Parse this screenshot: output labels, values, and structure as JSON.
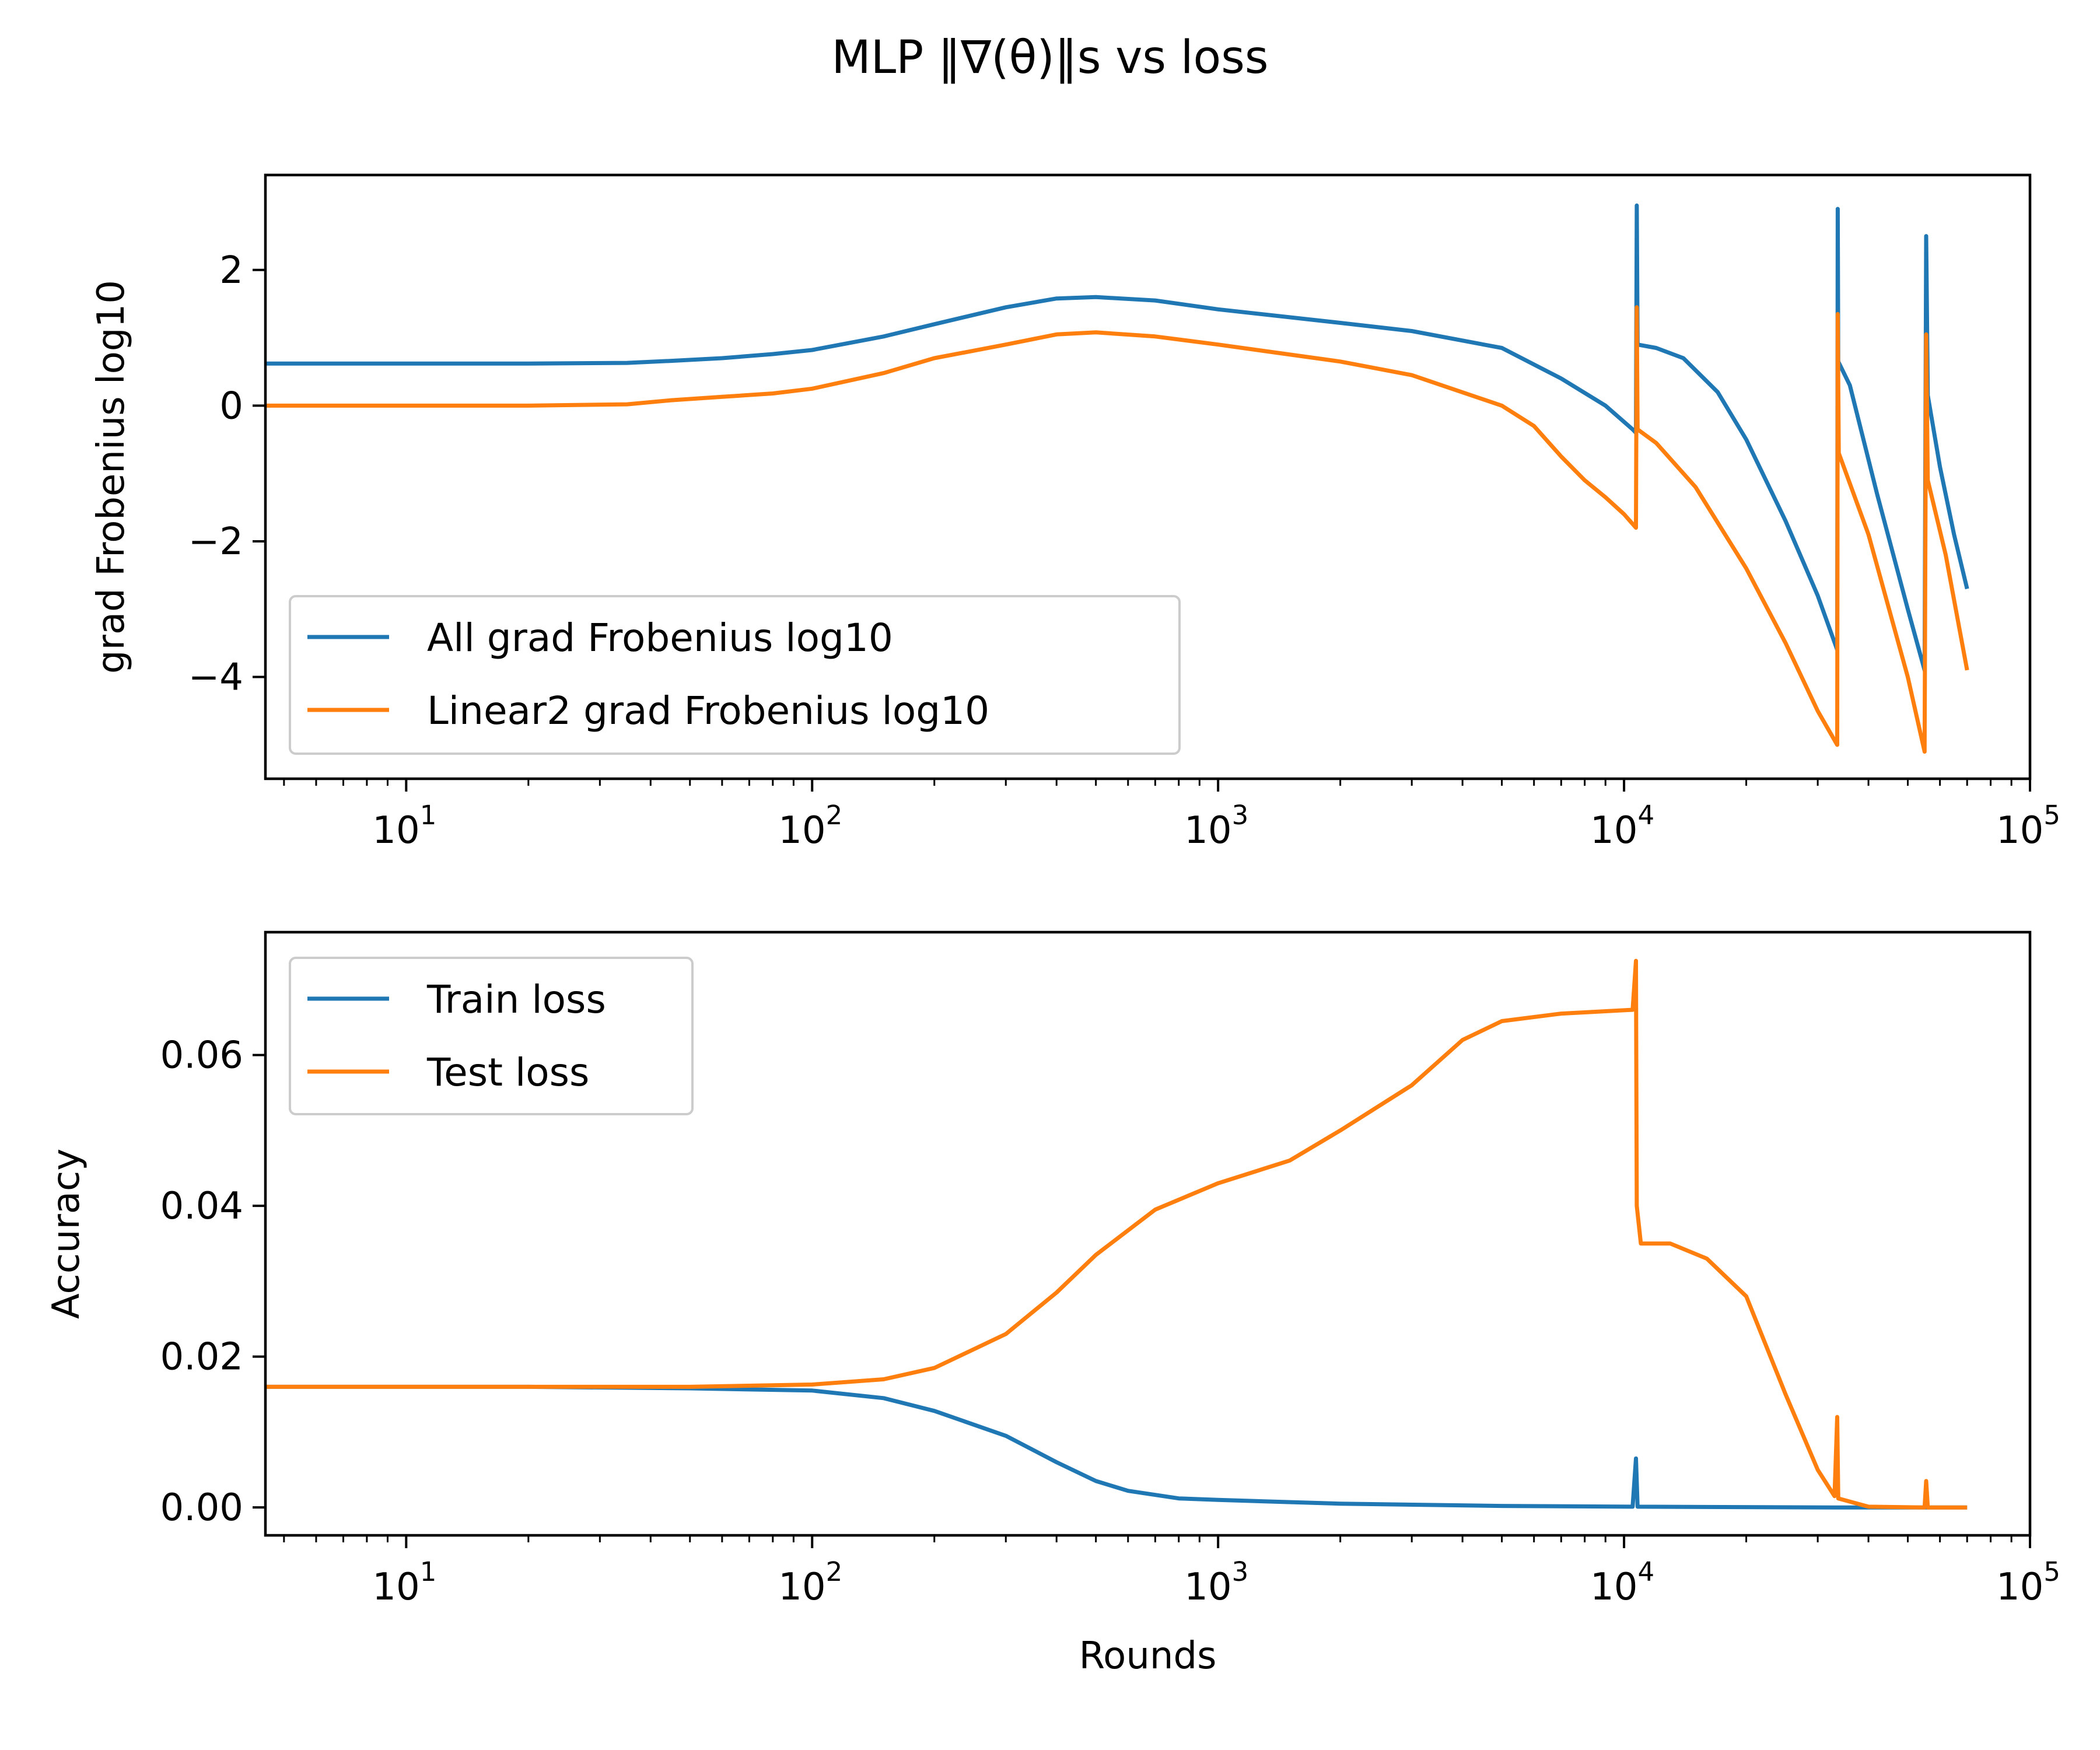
{
  "figure_title": "MLP ‖∇(θ)‖s vs loss",
  "colors": {
    "blue": "#1f77b4",
    "orange": "#ff7f0e"
  },
  "chart_data": [
    {
      "type": "line",
      "title": "",
      "xlabel": "",
      "ylabel": "grad Frobenius log10",
      "x_scale": "log",
      "xlim": [
        4.5,
        100000
      ],
      "ylim": [
        -5.5,
        3.4
      ],
      "x_ticks": [
        {
          "base": "10",
          "exp": "1"
        },
        {
          "base": "10",
          "exp": "2"
        },
        {
          "base": "10",
          "exp": "3"
        },
        {
          "base": "10",
          "exp": "4"
        },
        {
          "base": "10",
          "exp": "5"
        }
      ],
      "y_ticks": [
        "−4",
        "−2",
        "0",
        "2"
      ],
      "y_tick_values": [
        -4,
        -2,
        0,
        2
      ],
      "legend_position": "lower-left",
      "grid": false,
      "series": [
        {
          "name": "All grad Frobenius log10",
          "color": "#1f77b4",
          "points": [
            [
              4.5,
              0.62
            ],
            [
              10,
              0.62
            ],
            [
              20,
              0.62
            ],
            [
              35,
              0.63
            ],
            [
              45,
              0.66
            ],
            [
              60,
              0.7
            ],
            [
              80,
              0.76
            ],
            [
              100,
              0.82
            ],
            [
              150,
              1.02
            ],
            [
              200,
              1.2
            ],
            [
              300,
              1.45
            ],
            [
              400,
              1.58
            ],
            [
              500,
              1.6
            ],
            [
              700,
              1.55
            ],
            [
              1000,
              1.42
            ],
            [
              2000,
              1.22
            ],
            [
              3000,
              1.1
            ],
            [
              5000,
              0.85
            ],
            [
              7000,
              0.4
            ],
            [
              9000,
              0.0
            ],
            [
              10500,
              -0.35
            ],
            [
              10700,
              -0.4
            ],
            [
              10750,
              2.95
            ],
            [
              10800,
              0.9
            ],
            [
              12000,
              0.85
            ],
            [
              14000,
              0.7
            ],
            [
              17000,
              0.2
            ],
            [
              20000,
              -0.5
            ],
            [
              25000,
              -1.7
            ],
            [
              30000,
              -2.8
            ],
            [
              33500,
              -3.6
            ],
            [
              33600,
              2.9
            ],
            [
              33700,
              0.65
            ],
            [
              36000,
              0.3
            ],
            [
              42000,
              -1.3
            ],
            [
              50000,
              -3.0
            ],
            [
              55000,
              -3.9
            ],
            [
              55500,
              2.5
            ],
            [
              56000,
              0.15
            ],
            [
              60000,
              -0.9
            ],
            [
              65000,
              -1.9
            ],
            [
              70000,
              -2.7
            ]
          ]
        },
        {
          "name": "Linear2 grad Frobenius log10",
          "color": "#ff7f0e",
          "points": [
            [
              4.5,
              0.0
            ],
            [
              10,
              0.0
            ],
            [
              20,
              0.0
            ],
            [
              35,
              0.02
            ],
            [
              45,
              0.08
            ],
            [
              60,
              0.13
            ],
            [
              80,
              0.18
            ],
            [
              100,
              0.25
            ],
            [
              150,
              0.48
            ],
            [
              200,
              0.7
            ],
            [
              300,
              0.9
            ],
            [
              400,
              1.05
            ],
            [
              500,
              1.08
            ],
            [
              700,
              1.02
            ],
            [
              1000,
              0.9
            ],
            [
              2000,
              0.65
            ],
            [
              3000,
              0.45
            ],
            [
              5000,
              0.0
            ],
            [
              6000,
              -0.3
            ],
            [
              7000,
              -0.75
            ],
            [
              8000,
              -1.1
            ],
            [
              9000,
              -1.35
            ],
            [
              10000,
              -1.6
            ],
            [
              10700,
              -1.8
            ],
            [
              10750,
              1.45
            ],
            [
              10800,
              -0.35
            ],
            [
              12000,
              -0.55
            ],
            [
              15000,
              -1.2
            ],
            [
              20000,
              -2.4
            ],
            [
              25000,
              -3.5
            ],
            [
              30000,
              -4.5
            ],
            [
              33500,
              -5.0
            ],
            [
              33600,
              1.35
            ],
            [
              33800,
              -0.7
            ],
            [
              40000,
              -1.9
            ],
            [
              50000,
              -4.0
            ],
            [
              55000,
              -5.1
            ],
            [
              55500,
              1.05
            ],
            [
              56000,
              -1.1
            ],
            [
              62000,
              -2.2
            ],
            [
              70000,
              -3.9
            ]
          ]
        }
      ]
    },
    {
      "type": "line",
      "title": "",
      "xlabel": "Rounds",
      "ylabel": "Accuracy",
      "x_scale": "log",
      "xlim": [
        4.5,
        100000
      ],
      "ylim": [
        -0.0037,
        0.0763
      ],
      "x_ticks": [
        {
          "base": "10",
          "exp": "1"
        },
        {
          "base": "10",
          "exp": "2"
        },
        {
          "base": "10",
          "exp": "3"
        },
        {
          "base": "10",
          "exp": "4"
        },
        {
          "base": "10",
          "exp": "5"
        }
      ],
      "y_ticks": [
        "0.00",
        "0.02",
        "0.04",
        "0.06"
      ],
      "y_tick_values": [
        0,
        0.02,
        0.04,
        0.06
      ],
      "legend_position": "upper-left",
      "grid": false,
      "series": [
        {
          "name": "Train loss",
          "color": "#1f77b4",
          "points": [
            [
              4.5,
              0.016
            ],
            [
              20,
              0.016
            ],
            [
              50,
              0.0158
            ],
            [
              100,
              0.0155
            ],
            [
              150,
              0.0145
            ],
            [
              200,
              0.0128
            ],
            [
              300,
              0.0095
            ],
            [
              400,
              0.006
            ],
            [
              500,
              0.0035
            ],
            [
              600,
              0.0022
            ],
            [
              800,
              0.0012
            ],
            [
              1000,
              0.001
            ],
            [
              2000,
              0.0005
            ],
            [
              5000,
              0.0002
            ],
            [
              10500,
              0.0001
            ],
            [
              10700,
              0.0065
            ],
            [
              10800,
              0.0001
            ],
            [
              33000,
              0.0
            ],
            [
              70000,
              0.0
            ]
          ]
        },
        {
          "name": "Test loss",
          "color": "#ff7f0e",
          "points": [
            [
              4.5,
              0.016
            ],
            [
              50,
              0.016
            ],
            [
              100,
              0.0163
            ],
            [
              150,
              0.017
            ],
            [
              200,
              0.0185
            ],
            [
              300,
              0.023
            ],
            [
              400,
              0.0285
            ],
            [
              500,
              0.0335
            ],
            [
              700,
              0.0395
            ],
            [
              1000,
              0.043
            ],
            [
              1500,
              0.046
            ],
            [
              2000,
              0.05
            ],
            [
              3000,
              0.056
            ],
            [
              4000,
              0.062
            ],
            [
              5000,
              0.0645
            ],
            [
              7000,
              0.0655
            ],
            [
              10500,
              0.066
            ],
            [
              10700,
              0.0725
            ],
            [
              10750,
              0.04
            ],
            [
              11000,
              0.035
            ],
            [
              13000,
              0.035
            ],
            [
              16000,
              0.033
            ],
            [
              20000,
              0.028
            ],
            [
              25000,
              0.015
            ],
            [
              30000,
              0.005
            ],
            [
              33000,
              0.0015
            ],
            [
              33500,
              0.012
            ],
            [
              33700,
              0.0012
            ],
            [
              40000,
              0.0001
            ],
            [
              55000,
              0.0
            ],
            [
              55500,
              0.0035
            ],
            [
              56000,
              0.0
            ],
            [
              70000,
              0.0
            ]
          ]
        }
      ]
    }
  ]
}
